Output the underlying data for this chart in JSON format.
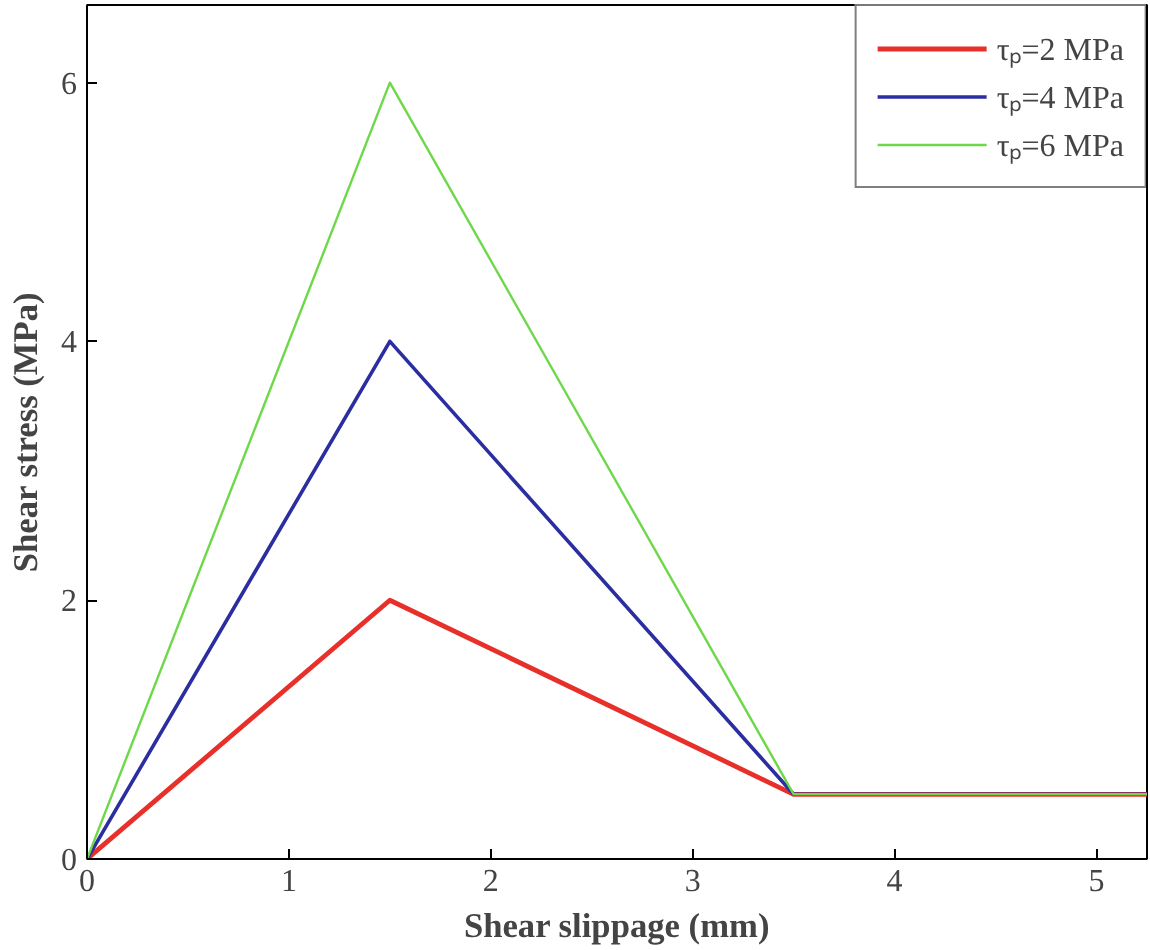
{
  "chart_data": {
    "type": "line",
    "xlabel": "Shear slippage (mm)",
    "ylabel": "Shear stress (MPa)",
    "x": [
      0,
      1.5,
      3.5,
      5.25
    ],
    "series": [
      {
        "name": "τₚ=2 MPa",
        "color": "#e8302a",
        "values": [
          0,
          2,
          0.5,
          0.5
        ]
      },
      {
        "name": "τₚ=4 MPa",
        "color": "#2a2ea0",
        "values": [
          0,
          4,
          0.5,
          0.5
        ]
      },
      {
        "name": "τₚ=6 MPa",
        "color": "#6ed84a",
        "values": [
          0,
          6,
          0.5,
          0.5
        ]
      }
    ],
    "xlim": [
      0,
      5.25
    ],
    "xticks": [
      0,
      1,
      2,
      3,
      4,
      5
    ],
    "ylim": [
      0,
      6.6
    ],
    "yticks": [
      0,
      2,
      4,
      6
    ],
    "grid": false,
    "legend": "top right",
    "marker": "none",
    "line_style": "solid"
  }
}
